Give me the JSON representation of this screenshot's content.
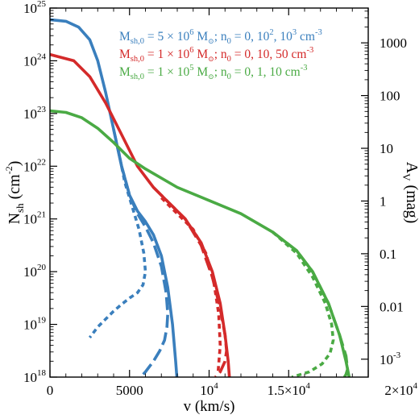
{
  "chart_data": {
    "type": "line",
    "xlabel": "v (km/s)",
    "ylabel_left": {
      "main": "N",
      "sub": "sh",
      "rest": " (cm",
      "sup": "-2",
      "close": ")"
    },
    "ylabel_right": {
      "main": "A",
      "sub": "V",
      "rest": " (mag)"
    },
    "xlim": [
      0,
      20000
    ],
    "ylim_log10": [
      18,
      25
    ],
    "x_ticks": [
      {
        "value": 0,
        "label": "0"
      },
      {
        "value": 5000,
        "label": "5000"
      },
      {
        "value": 10000,
        "label": "10",
        "sup": "4"
      },
      {
        "value": 15000,
        "label": "1.5×10",
        "sup": "4"
      },
      {
        "value": 20000,
        "label": "2×10",
        "sup": "4"
      }
    ],
    "y_ticks_left": [
      {
        "exp": 18,
        "label": "10",
        "sup": "18"
      },
      {
        "exp": 19,
        "label": "10",
        "sup": "19"
      },
      {
        "exp": 20,
        "label": "10",
        "sup": "20"
      },
      {
        "exp": 21,
        "label": "10",
        "sup": "21"
      },
      {
        "exp": 22,
        "label": "10",
        "sup": "22"
      },
      {
        "exp": 23,
        "label": "10",
        "sup": "23"
      },
      {
        "exp": 24,
        "label": "10",
        "sup": "24"
      },
      {
        "exp": 25,
        "label": "10",
        "sup": "25"
      }
    ],
    "y_ticks_right": [
      {
        "logN": 24.34,
        "label": "1000"
      },
      {
        "logN": 23.34,
        "label": "100"
      },
      {
        "logN": 22.34,
        "label": "10"
      },
      {
        "logN": 21.34,
        "label": "1"
      },
      {
        "logN": 20.34,
        "label": "0.1"
      },
      {
        "logN": 19.34,
        "label": "0.01"
      },
      {
        "logN": 18.34,
        "label": "10",
        "sup": "-3"
      }
    ],
    "legend": [
      {
        "color": "#3a7fbd",
        "m": "M",
        "msub": "sh,0",
        "mid": " = 5 × 10",
        "msup": "6",
        "tail": " M",
        "tail2": "; n",
        "nsub": "0",
        "vals": " = 0, 10",
        "vsup": "2",
        "vals2": ", 10",
        "vsup2": "3",
        "unit": " cm",
        "usup": "-3"
      },
      {
        "color": "#d42a2a",
        "m": "M",
        "msub": "sh,0",
        "mid": " = 1 × 10",
        "msup": "6",
        "tail": " M",
        "tail2": "; n",
        "nsub": "0",
        "vals": " = 0, 10, 50",
        "vsup": "",
        "vals2": "",
        "vsup2": "",
        "unit": " cm",
        "usup": "-3"
      },
      {
        "color": "#4aaa44",
        "m": "M",
        "msub": "sh,0",
        "mid": " = 1 × 10",
        "msup": "5",
        "tail": " M",
        "tail2": "; n",
        "nsub": "0",
        "vals": " = 0, 1, 10",
        "vsup": "",
        "vals2": "",
        "vsup2": "",
        "unit": " cm",
        "usup": "-3"
      }
    ],
    "series": [
      {
        "name": "M_sh,0 = 5×10^6, n0 = 0",
        "color": "#3a7fbd",
        "style": "solid",
        "x": [
          0,
          1000,
          1800,
          2500,
          3000,
          3500,
          4000,
          4500,
          5000,
          5500,
          6000,
          6500,
          7000,
          7400,
          7700,
          7900,
          8000
        ],
        "logy": [
          24.78,
          24.75,
          24.64,
          24.4,
          24.0,
          23.4,
          22.7,
          22.0,
          21.45,
          21.15,
          20.95,
          20.7,
          20.3,
          19.7,
          19.0,
          18.3,
          17.9
        ]
      },
      {
        "name": "M_sh,0 = 5×10^6, n0 = 10^2",
        "color": "#3a7fbd",
        "style": "dash",
        "x": [
          4000,
          4500,
          5000,
          5500,
          6000,
          6500,
          7000,
          7300,
          7400,
          7350,
          7200,
          6900,
          6500,
          6000,
          5700
        ],
        "logy": [
          22.7,
          22.0,
          21.45,
          21.1,
          20.85,
          20.55,
          20.1,
          19.6,
          19.2,
          18.95,
          18.7,
          18.5,
          18.3,
          18.1,
          18.0
        ]
      },
      {
        "name": "M_sh,0 = 5×10^6, n0 = 10^3",
        "color": "#3a7fbd",
        "style": "dot",
        "x": [
          4300,
          4700,
          5200,
          5600,
          5900,
          6000,
          5850,
          5500,
          5000,
          4500,
          4000,
          3500,
          3000,
          2500
        ],
        "logy": [
          22.3,
          21.7,
          21.2,
          20.8,
          20.35,
          20.0,
          19.75,
          19.6,
          19.5,
          19.38,
          19.25,
          19.1,
          18.95,
          18.75
        ]
      },
      {
        "name": "M_sh,0 = 1×10^6, n0 = 0",
        "color": "#d42a2a",
        "style": "solid",
        "x": [
          0,
          1500,
          2500,
          3500,
          4500,
          5500,
          6500,
          7500,
          8500,
          9500,
          10200,
          10700,
          11000,
          11200,
          11300
        ],
        "logy": [
          24.12,
          24.0,
          23.7,
          23.2,
          22.6,
          22.0,
          21.6,
          21.3,
          21.0,
          20.55,
          20.0,
          19.4,
          18.8,
          18.3,
          17.9
        ]
      },
      {
        "name": "M_sh,0 = 1×10^6, n0 = 10",
        "color": "#d42a2a",
        "style": "dash",
        "x": [
          6500,
          7500,
          8500,
          9500,
          10200,
          10700,
          11000,
          11100,
          11000,
          10700,
          10400
        ],
        "logy": [
          21.6,
          21.3,
          21.0,
          20.5,
          19.9,
          19.3,
          18.8,
          18.5,
          18.3,
          18.1,
          18.0
        ]
      },
      {
        "name": "M_sh,0 = 1×10^6, n0 = 50",
        "color": "#d42a2a",
        "style": "dot",
        "x": [
          7000,
          8000,
          9000,
          9800,
          10300,
          10600,
          10700,
          10550
        ],
        "logy": [
          21.4,
          21.1,
          20.8,
          20.35,
          19.8,
          19.2,
          18.6,
          18.05
        ]
      },
      {
        "name": "M_sh,0 = 1×10^5, n0 = 0",
        "color": "#4aaa44",
        "style": "solid",
        "x": [
          0,
          1000,
          2000,
          3000,
          4000,
          5000,
          6000,
          8000,
          10000,
          12000,
          14000,
          15500,
          16500,
          17500,
          18200,
          18600,
          18800,
          18900
        ],
        "logy": [
          23.05,
          23.02,
          22.92,
          22.72,
          22.45,
          22.15,
          21.95,
          21.6,
          21.35,
          21.1,
          20.75,
          20.4,
          20.0,
          19.4,
          18.8,
          18.3,
          18.0,
          17.9
        ]
      },
      {
        "name": "M_sh,0 = 1×10^5, n0 = 1",
        "color": "#4aaa44",
        "style": "dash",
        "x": [
          14000,
          15500,
          16500,
          17500,
          18200,
          18600,
          18700,
          18600,
          18500
        ],
        "logy": [
          20.75,
          20.4,
          20.0,
          19.4,
          18.8,
          18.4,
          18.15,
          18.05,
          18.0
        ]
      },
      {
        "name": "M_sh,0 = 1×10^5, n0 = 10",
        "color": "#4aaa44",
        "style": "dot",
        "x": [
          14000,
          15500,
          16500,
          17300,
          17700,
          17800,
          17600,
          17100,
          16300,
          15200
        ],
        "logy": [
          20.75,
          20.35,
          19.9,
          19.4,
          19.0,
          18.7,
          18.45,
          18.25,
          18.1,
          18.0
        ]
      }
    ]
  }
}
